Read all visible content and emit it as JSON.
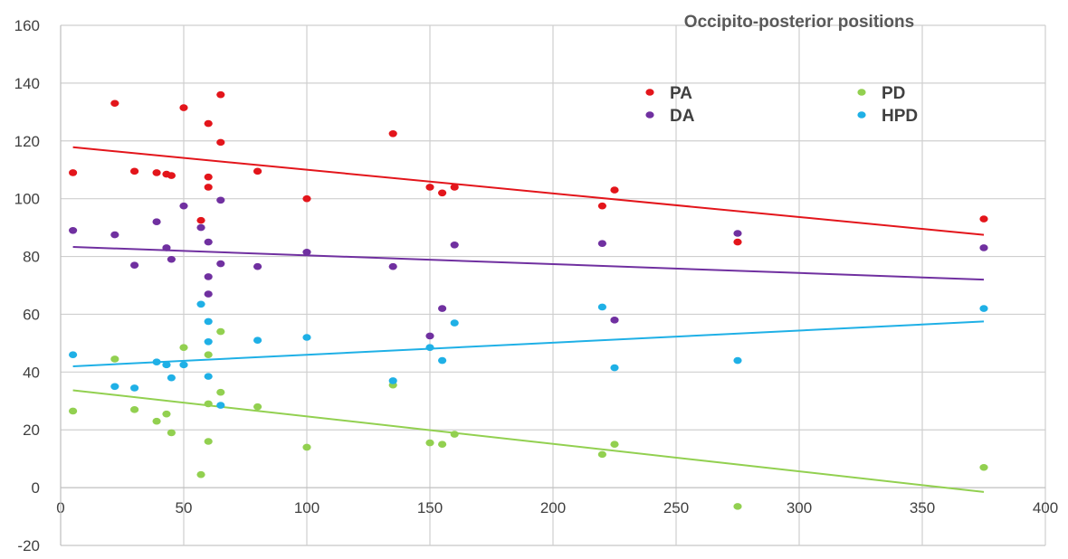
{
  "chart_data": {
    "type": "scatter",
    "title": "Occipito-posterior positions",
    "xlabel": "",
    "ylabel": "",
    "xlim": [
      0,
      400
    ],
    "ylim": [
      -20,
      160
    ],
    "x_ticks": [
      0,
      50,
      100,
      150,
      200,
      250,
      300,
      350,
      400
    ],
    "y_ticks": [
      -20,
      0,
      20,
      40,
      60,
      80,
      100,
      120,
      140,
      160
    ],
    "grid": true,
    "legend_position": "top-right",
    "series": [
      {
        "name": "PA",
        "color": "#e3151b",
        "points": [
          [
            5,
            109
          ],
          [
            22,
            133
          ],
          [
            30,
            109.5
          ],
          [
            39,
            109
          ],
          [
            43,
            108.5
          ],
          [
            45,
            108
          ],
          [
            50,
            131.5
          ],
          [
            57,
            92.5
          ],
          [
            60,
            126
          ],
          [
            60,
            107.5
          ],
          [
            60,
            104
          ],
          [
            65,
            136
          ],
          [
            65,
            119.5
          ],
          [
            80,
            109.5
          ],
          [
            100,
            100
          ],
          [
            135,
            122.5
          ],
          [
            150,
            104
          ],
          [
            155,
            102
          ],
          [
            160,
            104
          ],
          [
            220,
            97.5
          ],
          [
            225,
            103
          ],
          [
            275,
            85
          ],
          [
            375,
            93
          ]
        ],
        "trendline": [
          [
            5,
            117.8
          ],
          [
            375,
            87.5
          ]
        ]
      },
      {
        "name": "DA",
        "color": "#7030a0",
        "points": [
          [
            5,
            89
          ],
          [
            22,
            87.5
          ],
          [
            30,
            77
          ],
          [
            39,
            92
          ],
          [
            43,
            83
          ],
          [
            45,
            79
          ],
          [
            50,
            97.5
          ],
          [
            57,
            90
          ],
          [
            60,
            85
          ],
          [
            60,
            73
          ],
          [
            60,
            67
          ],
          [
            65,
            99.5
          ],
          [
            65,
            77.5
          ],
          [
            80,
            76.5
          ],
          [
            100,
            81.5
          ],
          [
            135,
            76.5
          ],
          [
            150,
            52.5
          ],
          [
            155,
            62
          ],
          [
            160,
            84
          ],
          [
            220,
            84.5
          ],
          [
            225,
            58
          ],
          [
            275,
            88
          ],
          [
            375,
            83
          ]
        ],
        "trendline": [
          [
            5,
            83.3
          ],
          [
            375,
            72
          ]
        ]
      },
      {
        "name": "PD",
        "color": "#92d050",
        "points": [
          [
            5,
            26.5
          ],
          [
            22,
            44.5
          ],
          [
            30,
            27
          ],
          [
            39,
            23
          ],
          [
            43,
            25.5
          ],
          [
            45,
            19
          ],
          [
            50,
            48.5
          ],
          [
            57,
            4.5
          ],
          [
            60,
            29
          ],
          [
            60,
            46
          ],
          [
            60,
            16
          ],
          [
            65,
            54
          ],
          [
            65,
            33
          ],
          [
            80,
            28
          ],
          [
            100,
            14
          ],
          [
            135,
            35.5
          ],
          [
            150,
            15.5
          ],
          [
            155,
            15
          ],
          [
            160,
            18.5
          ],
          [
            220,
            11.5
          ],
          [
            225,
            15
          ],
          [
            275,
            -6.5
          ],
          [
            375,
            7
          ]
        ],
        "trendline": [
          [
            5,
            33.7
          ],
          [
            375,
            -1.5
          ]
        ]
      },
      {
        "name": "HPD",
        "color": "#1fb0e6",
        "points": [
          [
            5,
            46
          ],
          [
            22,
            35
          ],
          [
            30,
            34.5
          ],
          [
            39,
            43.5
          ],
          [
            43,
            42.5
          ],
          [
            45,
            38
          ],
          [
            50,
            42.5
          ],
          [
            57,
            63.5
          ],
          [
            60,
            57.5
          ],
          [
            60,
            50.5
          ],
          [
            60,
            38.5
          ],
          [
            65,
            28.5
          ],
          [
            80,
            51
          ],
          [
            100,
            52
          ],
          [
            135,
            37
          ],
          [
            150,
            48.5
          ],
          [
            155,
            44
          ],
          [
            160,
            57
          ],
          [
            220,
            62.5
          ],
          [
            225,
            41.5
          ],
          [
            275,
            44
          ],
          [
            375,
            62
          ]
        ],
        "trendline": [
          [
            5,
            42
          ],
          [
            375,
            57.5
          ]
        ]
      }
    ]
  }
}
